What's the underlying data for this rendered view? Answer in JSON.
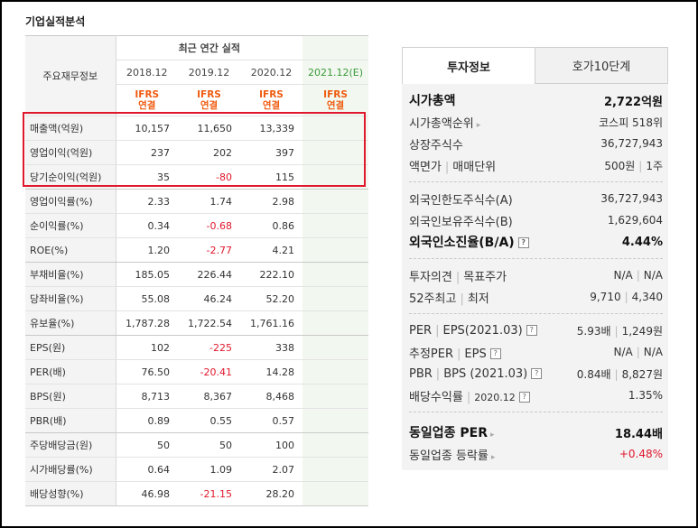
{
  "section_title": "기업실적분석",
  "table": {
    "header_label": "주요재무정보",
    "group_label": "최근 연간 실적",
    "periods": [
      "2018.12",
      "2019.12",
      "2020.12",
      "2021.12(E)"
    ],
    "ifrs": [
      "IFRS",
      "IFRS",
      "IFRS",
      "IFRS"
    ],
    "basis": [
      "연결",
      "연결",
      "연결",
      "연결"
    ],
    "rows": [
      {
        "label": "매출액(억원)",
        "values": [
          "10,157",
          "11,650",
          "13,339",
          ""
        ]
      },
      {
        "label": "영업이익(억원)",
        "values": [
          "237",
          "202",
          "397",
          ""
        ]
      },
      {
        "label": "당기순이익(억원)",
        "values": [
          "35",
          "-80",
          "115",
          ""
        ]
      },
      {
        "label": "영업이익률(%)",
        "values": [
          "2.33",
          "1.74",
          "2.98",
          ""
        ]
      },
      {
        "label": "순이익률(%)",
        "values": [
          "0.34",
          "-0.68",
          "0.86",
          ""
        ]
      },
      {
        "label": "ROE(%)",
        "values": [
          "1.20",
          "-2.77",
          "4.21",
          ""
        ]
      },
      {
        "label": "부채비율(%)",
        "values": [
          "185.05",
          "226.44",
          "222.10",
          ""
        ]
      },
      {
        "label": "당좌비율(%)",
        "values": [
          "55.08",
          "46.24",
          "52.20",
          ""
        ]
      },
      {
        "label": "유보율(%)",
        "values": [
          "1,787.28",
          "1,722.54",
          "1,761.16",
          ""
        ]
      },
      {
        "label": "EPS(원)",
        "values": [
          "102",
          "-225",
          "338",
          ""
        ]
      },
      {
        "label": "PER(배)",
        "values": [
          "76.50",
          "-20.41",
          "14.28",
          ""
        ]
      },
      {
        "label": "BPS(원)",
        "values": [
          "8,713",
          "8,367",
          "8,468",
          ""
        ]
      },
      {
        "label": "PBR(배)",
        "values": [
          "0.89",
          "0.55",
          "0.57",
          ""
        ]
      },
      {
        "label": "주당배당금(원)",
        "values": [
          "50",
          "50",
          "100",
          ""
        ]
      },
      {
        "label": "시가배당률(%)",
        "values": [
          "0.64",
          "1.09",
          "2.07",
          ""
        ]
      },
      {
        "label": "배당성향(%)",
        "values": [
          "46.98",
          "-21.15",
          "28.20",
          ""
        ]
      }
    ]
  },
  "panel": {
    "tab_active": "투자정보",
    "tab_inactive": "호가10단계",
    "market_cap_label": "시가총액",
    "market_cap_value": "2,722억원",
    "market_cap_rank_label": "시가총액순위",
    "market_cap_rank_value": "코스피 518위",
    "listed_shares_label": "상장주식수",
    "listed_shares_value": "36,727,943",
    "par_label_a": "액면가",
    "par_label_b": "매매단위",
    "par_value_a": "500원",
    "par_value_b": "1주",
    "foreign_limit_label": "외국인한도주식수(A)",
    "foreign_limit_value": "36,727,943",
    "foreign_hold_label": "외국인보유주식수(B)",
    "foreign_hold_value": "1,629,604",
    "foreign_ratio_label": "외국인소진율(B/A)",
    "foreign_ratio_value": "4.44%",
    "opinion_label_a": "투자의견",
    "opinion_label_b": "목표주가",
    "opinion_value_a": "N/A",
    "opinion_value_b": "N/A",
    "range_label_a": "52주최고",
    "range_label_b": "최저",
    "range_value_a": "9,710",
    "range_value_b": "4,340",
    "per_label_a": "PER",
    "per_label_b": "EPS(2021.03)",
    "per_value_a": "5.93배",
    "per_value_b": "1,249원",
    "est_per_label_a": "추정PER",
    "est_per_label_b": "EPS",
    "est_per_value_a": "N/A",
    "est_per_value_b": "N/A",
    "pbr_label_a": "PBR",
    "pbr_label_b": "BPS (2021.03)",
    "pbr_value_a": "0.84배",
    "pbr_value_b": "8,827원",
    "div_label_a": "배당수익률",
    "div_label_b": "2020.12",
    "div_value": "1.35%",
    "peer_per_label": "동일업종 PER",
    "peer_per_value": "18.44배",
    "peer_rate_label": "동일업종 등락률",
    "peer_rate_value": "+0.48%"
  },
  "colors": {
    "negative": "#e0182d",
    "ifrs": "#ef5b10",
    "estimate_bg": "#f2f8ef",
    "highlight_box": "#e0182d"
  }
}
